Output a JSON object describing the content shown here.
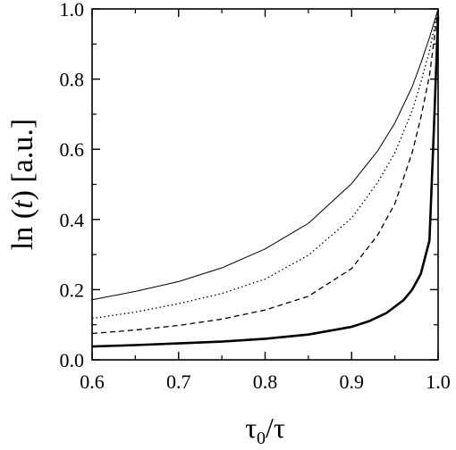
{
  "chart_data": {
    "type": "line",
    "title": "",
    "xlabel": {
      "main": "τ",
      "sub": "0",
      "rest": "/τ"
    },
    "ylabel": {
      "pre": "ln (",
      "italic": "t",
      "post": ")  [a.u.]"
    },
    "xlim": [
      0.6,
      1.0
    ],
    "ylim": [
      0.0,
      1.0
    ],
    "xticks": [
      0.6,
      0.7,
      0.8,
      0.9,
      1.0
    ],
    "yticks": [
      0.0,
      0.2,
      0.4,
      0.6,
      0.8,
      1.0
    ],
    "xtick_labels": [
      "0.6",
      "0.7",
      "0.8",
      "0.9",
      "1.0"
    ],
    "ytick_labels": [
      "0.0",
      "0.2",
      "0.4",
      "0.6",
      "0.8",
      "1.0"
    ],
    "grid": false,
    "legend": "none",
    "series": [
      {
        "style": "thin-solid",
        "x": [
          0.6,
          0.65,
          0.7,
          0.75,
          0.8,
          0.85,
          0.9,
          0.93,
          0.95,
          0.97,
          0.98,
          0.99,
          1.0
        ],
        "y": [
          0.171,
          0.195,
          0.223,
          0.262,
          0.316,
          0.389,
          0.502,
          0.595,
          0.675,
          0.778,
          0.845,
          0.918,
          1.0
        ]
      },
      {
        "style": "dotted",
        "x": [
          0.6,
          0.65,
          0.7,
          0.75,
          0.8,
          0.85,
          0.9,
          0.93,
          0.95,
          0.97,
          0.98,
          0.99,
          1.0
        ],
        "y": [
          0.118,
          0.136,
          0.16,
          0.189,
          0.23,
          0.298,
          0.404,
          0.505,
          0.59,
          0.71,
          0.79,
          0.88,
          1.0
        ]
      },
      {
        "style": "dashed",
        "x": [
          0.6,
          0.65,
          0.7,
          0.75,
          0.8,
          0.85,
          0.9,
          0.93,
          0.95,
          0.97,
          0.98,
          0.99,
          1.0
        ],
        "y": [
          0.075,
          0.085,
          0.098,
          0.116,
          0.142,
          0.181,
          0.26,
          0.355,
          0.445,
          0.59,
          0.69,
          0.81,
          1.0
        ]
      },
      {
        "style": "thick-solid",
        "x": [
          0.6,
          0.65,
          0.7,
          0.75,
          0.8,
          0.85,
          0.9,
          0.92,
          0.94,
          0.96,
          0.97,
          0.98,
          0.99,
          0.995,
          1.0
        ],
        "y": [
          0.038,
          0.042,
          0.047,
          0.052,
          0.06,
          0.072,
          0.094,
          0.11,
          0.133,
          0.17,
          0.2,
          0.245,
          0.34,
          0.65,
          0.98
        ]
      }
    ]
  }
}
